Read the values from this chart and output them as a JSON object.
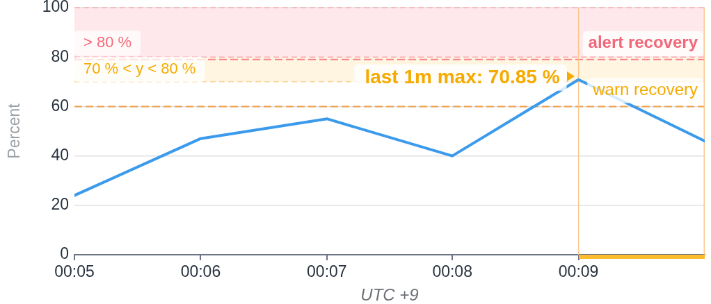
{
  "chart_data": {
    "type": "line",
    "xlabel": "UTC +9",
    "ylabel": "Percent",
    "x": [
      0.0833,
      0.1,
      0.1167,
      0.1333,
      0.15,
      0.1667
    ],
    "series": [
      {
        "color": "#3b9aeb",
        "values": [
          24,
          47,
          55,
          40,
          70.85,
          46
        ]
      }
    ],
    "xlim": [
      0.0833,
      0.1667
    ],
    "xticks": [
      {
        "value": 0.0833,
        "label": "00:05"
      },
      {
        "value": 0.1,
        "label": "00:06"
      },
      {
        "value": 0.1167,
        "label": "00:07"
      },
      {
        "value": 0.1333,
        "label": "00:08"
      },
      {
        "value": 0.15,
        "label": "00:09"
      }
    ],
    "ylim": [
      0,
      100
    ],
    "yticks": [
      0,
      20,
      40,
      60,
      80,
      100
    ],
    "grid": "y",
    "bands": [
      {
        "axis": "y",
        "from": 80,
        "to": 100,
        "label": "> 80 %",
        "color": "#fee8eb"
      },
      {
        "axis": "y",
        "from": 70,
        "to": 80,
        "label": "70 % < y < 80 %",
        "color": "#fff5e1"
      }
    ],
    "ref_lines": [
      {
        "axis": "y",
        "value": 79,
        "label": "alert recovery",
        "color": "#f5848e",
        "line_style": "dashed"
      },
      {
        "axis": "y",
        "value": 60,
        "label": "warn recovery",
        "color": "#f0a04b",
        "line_style": "dashed"
      },
      {
        "axis": "y",
        "value": 100,
        "color": "#f9b0b8",
        "line_style": "dashed"
      },
      {
        "axis": "y",
        "value": 80,
        "color": "#f7a8b0",
        "line_style": "dashed"
      },
      {
        "axis": "y",
        "value": 70,
        "color": "#fdd39a",
        "line_style": "dashed"
      },
      {
        "axis": "x",
        "value": 0.15,
        "color": "#fcc68e",
        "line_style": "solid"
      },
      {
        "axis": "x",
        "value": 0.1667,
        "color": "#fcc68e",
        "line_style": "solid"
      }
    ],
    "annotations": [
      {
        "text": "last 1m max: 70.85 %",
        "x": 0.15,
        "y": 70.85
      }
    ]
  }
}
